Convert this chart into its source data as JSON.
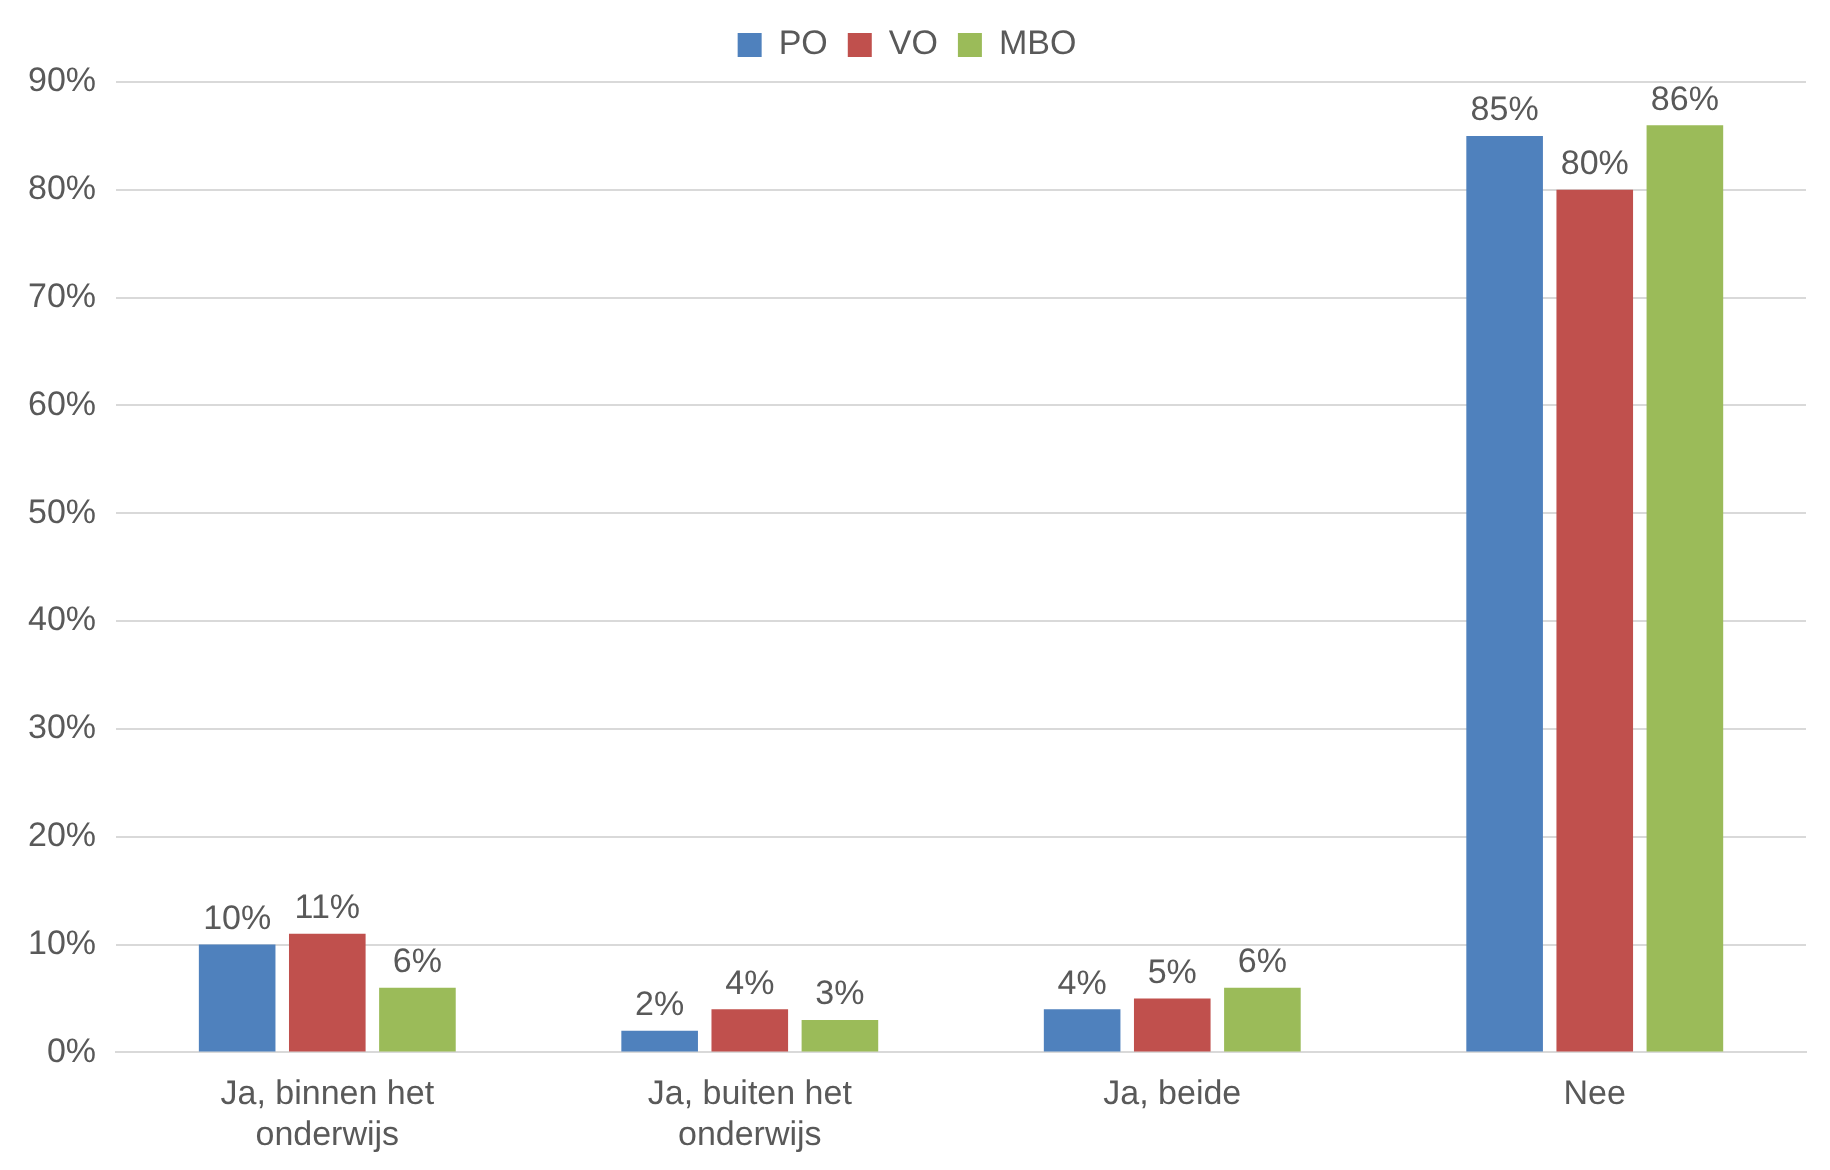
{
  "chart_data": {
    "type": "bar",
    "categories": [
      "Ja, binnen het onderwijs",
      "Ja, buiten het onderwijs",
      "Ja, beide",
      "Nee"
    ],
    "series": [
      {
        "name": "PO",
        "color": "#4f81bd",
        "values": [
          10,
          2,
          4,
          85
        ],
        "value_labels": [
          "10%",
          "2%",
          "4%",
          "85%"
        ]
      },
      {
        "name": "VO",
        "color": "#c0504d",
        "values": [
          11,
          4,
          5,
          80
        ],
        "value_labels": [
          "11%",
          "4%",
          "5%",
          "80%"
        ]
      },
      {
        "name": "MBO",
        "color": "#9bbb59",
        "values": [
          6,
          3,
          6,
          86
        ],
        "value_labels": [
          "6%",
          "3%",
          "6%",
          "86%"
        ]
      }
    ],
    "ylim": [
      0,
      90
    ],
    "yticks": [
      {
        "value": 0,
        "label": "0%"
      },
      {
        "value": 10,
        "label": "10%"
      },
      {
        "value": 20,
        "label": "20%"
      },
      {
        "value": 30,
        "label": "30%"
      },
      {
        "value": 40,
        "label": "40%"
      },
      {
        "value": 50,
        "label": "50%"
      },
      {
        "value": 60,
        "label": "60%"
      },
      {
        "value": 70,
        "label": "70%"
      },
      {
        "value": 80,
        "label": "80%"
      },
      {
        "value": 90,
        "label": "90%"
      }
    ],
    "grid": "y",
    "legend": "top"
  }
}
